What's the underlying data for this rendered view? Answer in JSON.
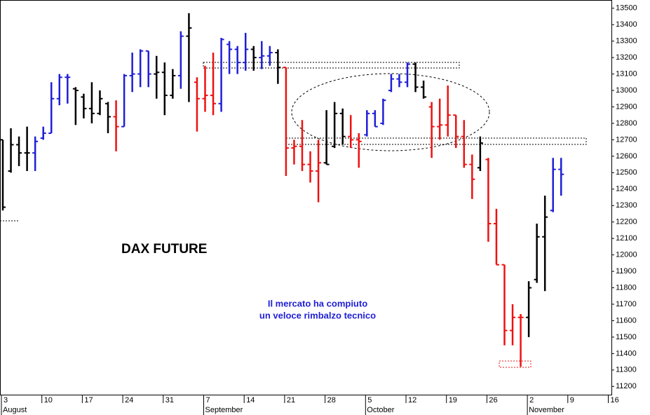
{
  "chart_data": {
    "type": "ohlc",
    "title": "DAX FUTURE",
    "annotations": [
      "Il mercato ha compiuto",
      "un veloce rimbalzo tecnico"
    ],
    "categories": [
      "3",
      null,
      null,
      null,
      null,
      "10",
      null,
      null,
      null,
      null,
      "17",
      null,
      null,
      null,
      null,
      "24",
      null,
      null,
      null,
      null,
      "31",
      null,
      null,
      null,
      null,
      "7",
      null,
      null,
      null,
      null,
      "14",
      null,
      null,
      null,
      null,
      "21",
      null,
      null,
      null,
      null,
      "28",
      null,
      null,
      null,
      null,
      "5",
      null,
      null,
      null,
      null,
      "12",
      null,
      null,
      null,
      null,
      "19",
      null,
      null,
      null,
      null,
      "26",
      null,
      null,
      null,
      null,
      "2",
      null,
      null,
      null,
      null,
      "9",
      null,
      null,
      null,
      null,
      "16"
    ],
    "months": [
      "August",
      null,
      null,
      null,
      null,
      null,
      null,
      null,
      null,
      null,
      null,
      null,
      null,
      null,
      null,
      null,
      null,
      null,
      null,
      null,
      null,
      null,
      null,
      null,
      null,
      "September",
      null,
      null,
      null,
      null,
      null,
      null,
      null,
      null,
      null,
      null,
      null,
      null,
      null,
      null,
      null,
      null,
      null,
      null,
      null,
      "October",
      null,
      null,
      null,
      null,
      null,
      null,
      null,
      null,
      null,
      null,
      null,
      null,
      null,
      null,
      null,
      null,
      null,
      null,
      null,
      "November",
      null,
      null,
      null,
      null,
      null,
      null,
      null,
      null,
      null,
      null
    ],
    "open": [
      12700,
      12510,
      12670,
      12620,
      12620,
      12710,
      12740,
      12950,
      13080,
      13010,
      12960,
      12890,
      12860,
      12920,
      12840,
      12780,
      13090,
      13100,
      13240,
      13100,
      13110,
      12970,
      13090,
      13330,
      13050,
      12950,
      12970,
      12920,
      13280,
      13250,
      13170,
      13250,
      13200,
      13210,
      13230,
      13140,
      12650,
      12660,
      12550,
      12510,
      12560,
      12660,
      12860,
      12720,
      12700,
      12730,
      12860,
      12800,
      13000,
      13070,
      13050,
      13160,
      13020,
      12900,
      12780,
      12790,
      12850,
      12720,
      12550,
      12530,
      12580,
      12190,
      11940,
      11540,
      11620,
      11620,
      11850,
      12110,
      12270,
      12520,
      null,
      null,
      null,
      null,
      null,
      null
    ],
    "high": [
      12700,
      12770,
      12720,
      12780,
      12720,
      12780,
      13050,
      13100,
      13100,
      13020,
      12980,
      13050,
      13000,
      12930,
      12940,
      13100,
      13230,
      13250,
      13240,
      13210,
      13170,
      13130,
      13360,
      13470,
      13080,
      13150,
      13230,
      13320,
      13300,
      13270,
      13350,
      13270,
      13300,
      13270,
      13250,
      13140,
      12700,
      12820,
      12630,
      12700,
      12880,
      12930,
      12890,
      12850,
      12740,
      12880,
      12880,
      12950,
      13100,
      13100,
      13170,
      13170,
      13060,
      12930,
      12950,
      13030,
      12850,
      12820,
      12610,
      12720,
      12590,
      12280,
      11940,
      11700,
      11640,
      11840,
      12190,
      12360,
      12590,
      12590,
      null,
      null,
      null,
      null,
      null,
      null
    ],
    "low": [
      12270,
      12500,
      12540,
      12510,
      12510,
      12700,
      12740,
      12910,
      12920,
      12790,
      12830,
      12800,
      12850,
      12740,
      12630,
      12780,
      12990,
      13020,
      13020,
      12950,
      12850,
      12950,
      13010,
      12930,
      12750,
      12870,
      12850,
      12870,
      13100,
      13100,
      13120,
      13120,
      13130,
      13150,
      13040,
      12480,
      12550,
      12510,
      12440,
      12320,
      12550,
      12650,
      12670,
      12650,
      12530,
      12720,
      12780,
      12790,
      12990,
      13020,
      13020,
      12990,
      12950,
      12590,
      12700,
      12720,
      12650,
      12530,
      12340,
      12510,
      12080,
      11940,
      11450,
      11450,
      11320,
      11500,
      11830,
      11780,
      12260,
      12360,
      null,
      null,
      null,
      null,
      null,
      null
    ],
    "close": [
      12290,
      12670,
      12620,
      12620,
      12690,
      12740,
      12950,
      13080,
      13080,
      13000,
      12890,
      12860,
      12950,
      12840,
      12780,
      13090,
      13100,
      13240,
      13100,
      13110,
      12970,
      13090,
      13330,
      13380,
      12950,
      12970,
      12920,
      13310,
      13250,
      13170,
      13250,
      13200,
      13210,
      13230,
      13140,
      12650,
      12660,
      12550,
      12510,
      12560,
      12550,
      12860,
      12720,
      12700,
      12690,
      12860,
      12780,
      12940,
      13070,
      13050,
      13160,
      13020,
      12960,
      12780,
      12790,
      12850,
      12720,
      12550,
      12460,
      12680,
      12190,
      11940,
      11540,
      11620,
      11620,
      11800,
      12110,
      12230,
      12520,
      12490,
      null,
      null,
      null,
      null,
      null,
      null
    ],
    "colors": [
      "#000000",
      "#000000",
      "#000000",
      "#000000",
      "#1f1fd6",
      "#1f1fd6",
      "#1f1fd6",
      "#1f1fd6",
      "#1f1fd6",
      "#000000",
      "#000000",
      "#000000",
      "#000000",
      "#000000",
      "#ee1111",
      "#1f1fd6",
      "#1f1fd6",
      "#1f1fd6",
      "#1f1fd6",
      "#000000",
      "#000000",
      "#000000",
      "#1f1fd6",
      "#000000",
      "#ee1111",
      "#ee1111",
      "#ee1111",
      "#1f1fd6",
      "#1f1fd6",
      "#1f1fd6",
      "#1f1fd6",
      "#000000",
      "#1f1fd6",
      "#1f1fd6",
      "#000000",
      "#ee1111",
      "#ee1111",
      "#ee1111",
      "#ee1111",
      "#ee1111",
      "#000000",
      "#000000",
      "#000000",
      "#ee1111",
      "#ee1111",
      "#1f1fd6",
      "#1f1fd6",
      "#1f1fd6",
      "#1f1fd6",
      "#1f1fd6",
      "#1f1fd6",
      "#000000",
      "#000000",
      "#ee1111",
      "#ee1111",
      "#ee1111",
      "#ee1111",
      "#ee1111",
      "#ee1111",
      "#000000",
      "#ee1111",
      "#ee1111",
      "#ee1111",
      "#ee1111",
      "#ee1111",
      "#000000",
      "#000000",
      "#000000",
      "#1f1fd6",
      "#1f1fd6",
      null,
      null,
      null,
      null,
      null,
      null
    ],
    "ylim": [
      11150,
      13550
    ],
    "yticks": [
      11200,
      11300,
      11400,
      11500,
      11600,
      11700,
      11800,
      11900,
      12000,
      12100,
      12200,
      12300,
      12400,
      12500,
      12600,
      12700,
      12800,
      12900,
      13000,
      13100,
      13200,
      13300,
      13400,
      13500
    ]
  }
}
